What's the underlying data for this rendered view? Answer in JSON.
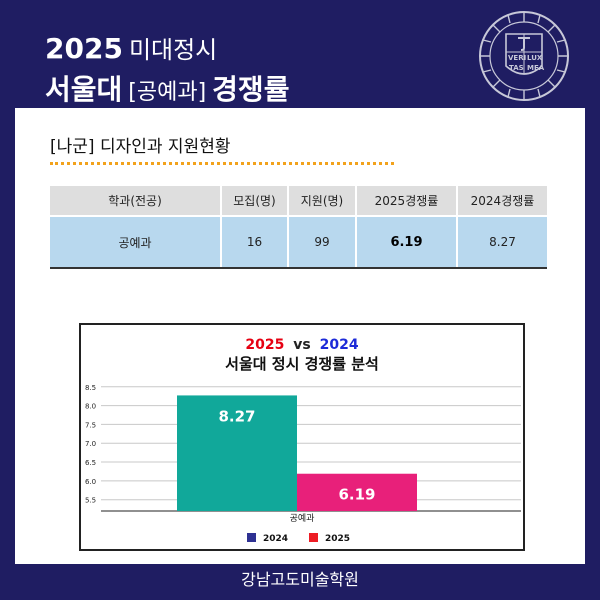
{
  "header": {
    "year": "2025",
    "subtitle": "미대정시",
    "university": "서울대",
    "department_bracket": "[공예과]",
    "ratio_label": "경쟁률"
  },
  "seal": {
    "letters": [
      "VERI",
      "LUX",
      "TAS",
      "MEA"
    ]
  },
  "section": {
    "title": "[나군] 디자인과 지원현황"
  },
  "table": {
    "headers": [
      "학과(전공)",
      "모집(명)",
      "지원(명)",
      "2025경쟁률",
      "2024경쟁률"
    ],
    "rows": [
      [
        "공예과",
        "16",
        "99",
        "6.19",
        "8.27"
      ]
    ]
  },
  "chart_data": {
    "type": "bar",
    "title_year_a": "2025",
    "title_vs": "vs",
    "title_year_b": "2024",
    "title": "서울대 정시 경쟁률 분석",
    "categories": [
      "공예과"
    ],
    "series": [
      {
        "name": "2024",
        "values": [
          8.27
        ],
        "color": "#11a89a",
        "legend_color": "#2e3192"
      },
      {
        "name": "2025",
        "values": [
          6.19
        ],
        "color": "#e8207a",
        "legend_color": "#ed1c24"
      }
    ],
    "data_labels": [
      "8.27",
      "6.19"
    ],
    "y_ticks": [
      "5.5",
      "6.0",
      "6.5",
      "7.0",
      "7.5",
      "8.0",
      "8.5"
    ],
    "ylim": [
      5.2,
      8.6
    ],
    "grid": true,
    "legend_position": "bottom",
    "colors": {
      "title_a": "#e60012",
      "title_b": "#1d2bd8"
    }
  },
  "footer": {
    "academy": "강남고도미술학원"
  },
  "colors": {
    "background": "#1f1d62",
    "dotted_line": "#f2a21c",
    "table_header": "#dedede",
    "table_body": "#b8d8ee"
  }
}
